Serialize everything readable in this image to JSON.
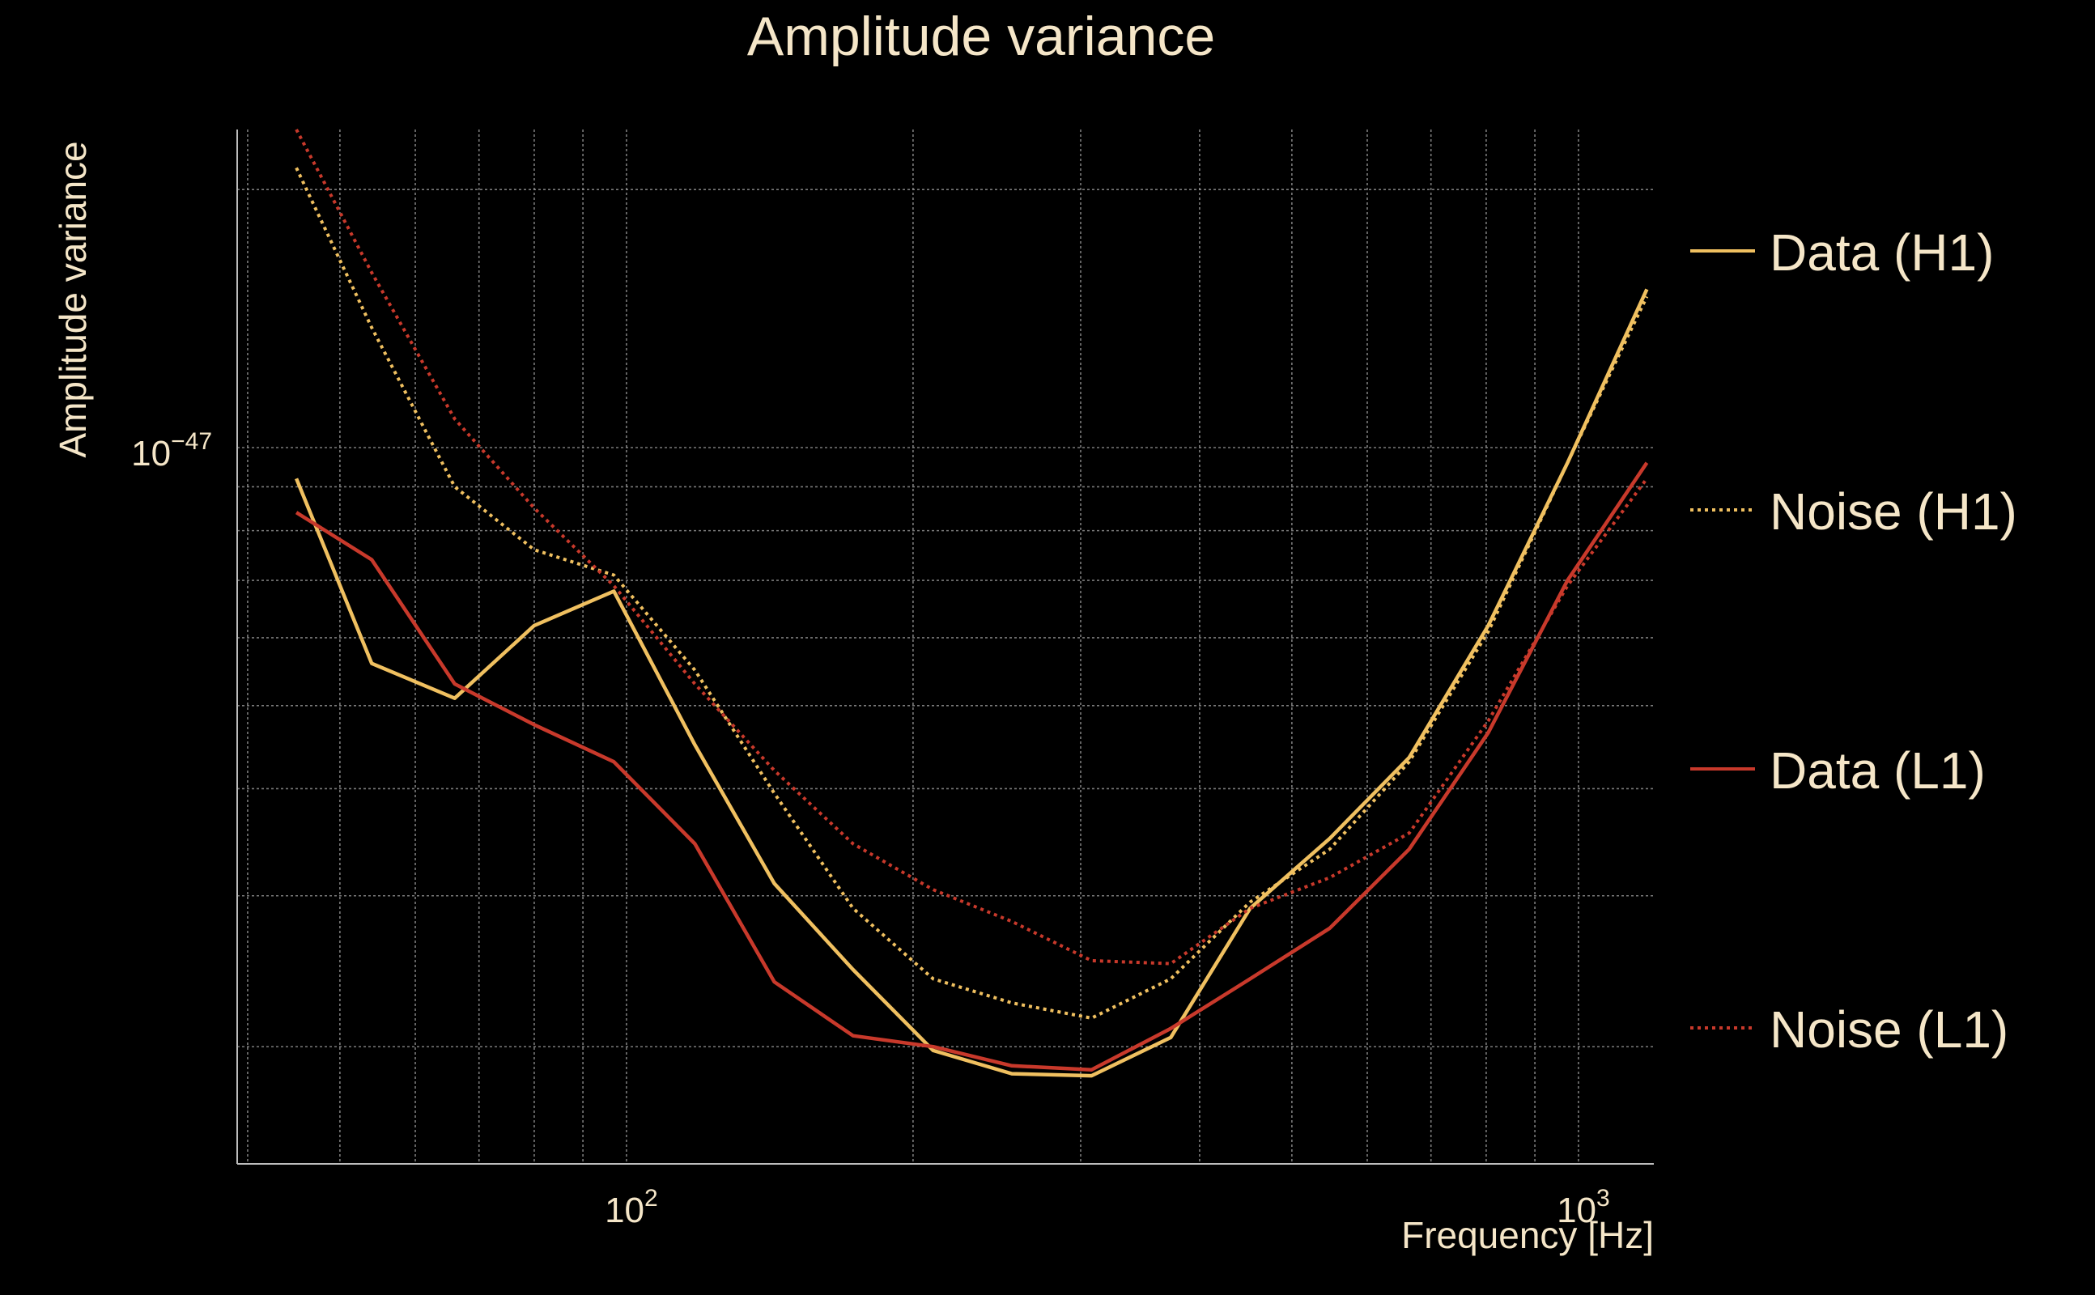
{
  "chart_data": {
    "type": "line",
    "title": "Amplitude variance",
    "xlabel": "Frequency [Hz]",
    "ylabel": "Amplitude variance",
    "x_scale": "log",
    "y_scale": "log",
    "xlim": [
      39,
      1200
    ],
    "ylim": [
      1.46e-48,
      2.35e-47
    ],
    "grid": true,
    "legend_position": "right",
    "x_ticks": [
      {
        "value": 100,
        "base": "10",
        "exp": "2"
      },
      {
        "value": 1000,
        "base": "10",
        "exp": "3"
      }
    ],
    "y_ticks": [
      {
        "value": 1e-47,
        "base": "10",
        "exp": "−47"
      }
    ],
    "colors": {
      "h1": "#f0c060",
      "l1": "#c8392b",
      "text": "#f5e6c8",
      "background": "#000000"
    },
    "series": [
      {
        "name": "Data (H1)",
        "key": "data_h1",
        "color": "#f0c060",
        "dash": "solid",
        "x": [
          45,
          54,
          66,
          80,
          97,
          118,
          143,
          173,
          210,
          254,
          308,
          373,
          452,
          548,
          664,
          804,
          974,
          1180
        ],
        "y": [
          9.2e-48,
          5.6e-48,
          5.1e-48,
          6.2e-48,
          6.8e-48,
          4.5e-48,
          3.1e-48,
          2.46e-48,
          1.98e-48,
          1.86e-48,
          1.85e-48,
          2.05e-48,
          2.9e-48,
          3.5e-48,
          4.35e-48,
          6.2e-48,
          9.6e-48,
          1.53e-47
        ]
      },
      {
        "name": "Noise (H1)",
        "key": "noise_h1",
        "color": "#f0c060",
        "dash": "dotted",
        "x": [
          45,
          54,
          66,
          80,
          97,
          118,
          143,
          173,
          210,
          254,
          308,
          373,
          452,
          548,
          664,
          804,
          974,
          1180
        ],
        "y": [
          2.12e-47,
          1.38e-47,
          9e-48,
          7.6e-48,
          7.1e-48,
          5.5e-48,
          3.95e-48,
          2.9e-48,
          2.4e-48,
          2.25e-48,
          2.16e-48,
          2.4e-48,
          2.95e-48,
          3.4e-48,
          4.3e-48,
          6.1e-48,
          9.6e-48,
          1.5e-47
        ]
      },
      {
        "name": "Data (L1)",
        "key": "data_l1",
        "color": "#c8392b",
        "dash": "solid",
        "x": [
          45,
          54,
          66,
          80,
          97,
          118,
          143,
          173,
          210,
          254,
          308,
          373,
          452,
          548,
          664,
          804,
          974,
          1180
        ],
        "y": [
          8.4e-48,
          7.4e-48,
          5.3e-48,
          4.75e-48,
          4.3e-48,
          3.45e-48,
          2.38e-48,
          2.06e-48,
          2e-48,
          1.9e-48,
          1.88e-48,
          2.1e-48,
          2.4e-48,
          2.75e-48,
          3.4e-48,
          4.65e-48,
          7e-48,
          9.6e-48
        ]
      },
      {
        "name": "Noise (L1)",
        "key": "noise_l1",
        "color": "#c8392b",
        "dash": "dotted",
        "x": [
          45,
          54,
          66,
          80,
          97,
          118,
          143,
          173,
          210,
          254,
          308,
          373,
          452,
          548,
          664,
          804,
          974,
          1180
        ],
        "y": [
          2.35e-47,
          1.6e-47,
          1.08e-47,
          8.5e-48,
          6.9e-48,
          5.3e-48,
          4.2e-48,
          3.45e-48,
          3.05e-48,
          2.8e-48,
          2.52e-48,
          2.5e-48,
          2.9e-48,
          3.15e-48,
          3.55e-48,
          4.8e-48,
          6.9e-48,
          9.2e-48
        ]
      }
    ]
  }
}
